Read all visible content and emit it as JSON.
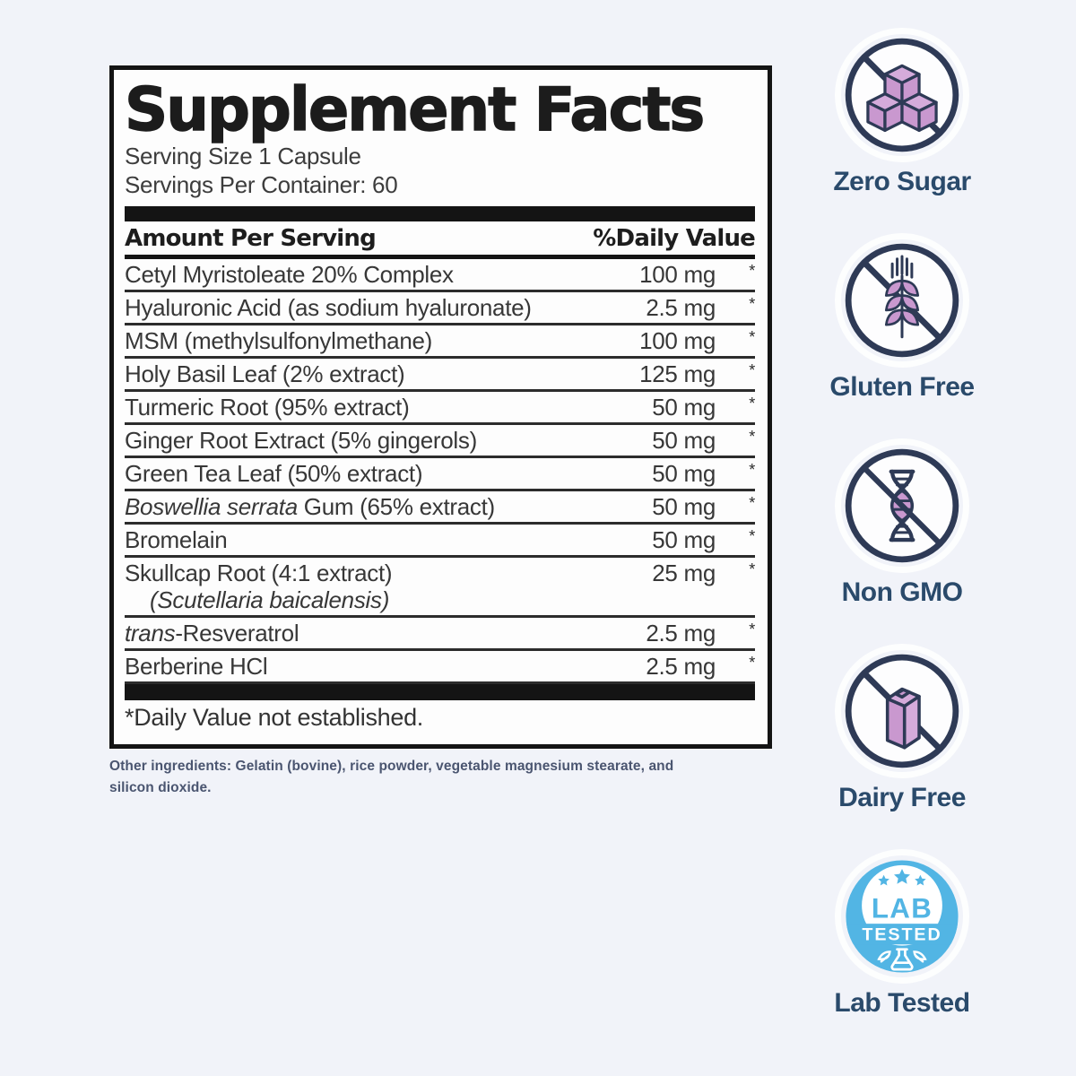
{
  "panel": {
    "title": "Supplement Facts",
    "serving_size": "Serving Size 1 Capsule",
    "servings_per_container": "Servings Per Container: 60",
    "columns": {
      "amount": "Amount Per Serving",
      "daily_value": "%Daily Value"
    },
    "rows": [
      {
        "parts": [
          {
            "text": "Cetyl Myristoleate 20% Complex",
            "italic": false
          }
        ],
        "amount": "100 mg",
        "dv": "*"
      },
      {
        "parts": [
          {
            "text": "Hyaluronic Acid (as sodium hyaluronate)",
            "italic": false
          }
        ],
        "amount": "2.5 mg",
        "dv": "*"
      },
      {
        "parts": [
          {
            "text": "MSM (methylsulfonylmethane)",
            "italic": false
          }
        ],
        "amount": "100 mg",
        "dv": "*"
      },
      {
        "parts": [
          {
            "text": "Holy Basil Leaf (2% extract)",
            "italic": false
          }
        ],
        "amount": "125 mg",
        "dv": "*"
      },
      {
        "parts": [
          {
            "text": "Turmeric Root (95% extract)",
            "italic": false
          }
        ],
        "amount": "50 mg",
        "dv": "*"
      },
      {
        "parts": [
          {
            "text": "Ginger Root Extract (5% gingerols)",
            "italic": false
          }
        ],
        "amount": "50 mg",
        "dv": "*"
      },
      {
        "parts": [
          {
            "text": "Green Tea Leaf (50% extract)",
            "italic": false
          }
        ],
        "amount": "50 mg",
        "dv": "*"
      },
      {
        "parts": [
          {
            "text": "Boswellia serrata",
            "italic": true
          },
          {
            "text": " Gum (65% extract)",
            "italic": false
          }
        ],
        "amount": "50 mg",
        "dv": "*"
      },
      {
        "parts": [
          {
            "text": "Bromelain",
            "italic": false
          }
        ],
        "amount": "50 mg",
        "dv": "*"
      },
      {
        "parts": [
          {
            "text": "Skullcap Root (4:1 extract)",
            "italic": false
          }
        ],
        "sub": [
          {
            "text": "(Scutellaria baicalensis)",
            "italic": true
          }
        ],
        "amount": "25 mg",
        "dv": "*"
      },
      {
        "parts": [
          {
            "text": "trans",
            "italic": true
          },
          {
            "text": "-Resveratrol",
            "italic": false
          }
        ],
        "amount": "2.5 mg",
        "dv": "*"
      },
      {
        "parts": [
          {
            "text": "Berberine HCl",
            "italic": false
          }
        ],
        "amount": "2.5 mg",
        "dv": "*"
      }
    ],
    "footnote": "*Daily Value not established."
  },
  "other_ingredients": "Other ingredients: Gelatin (bovine), rice powder, vegetable magnesium stearate, and silicon dioxide.",
  "badges": [
    {
      "label": "Zero Sugar",
      "icon": "no-sugar-icon"
    },
    {
      "label": "Gluten Free",
      "icon": "no-gluten-icon"
    },
    {
      "label": "Non GMO",
      "icon": "no-gmo-icon"
    },
    {
      "label": "Dairy Free",
      "icon": "no-dairy-icon"
    },
    {
      "label": "Lab Tested",
      "icon": "lab-tested-seal"
    }
  ],
  "lab_seal": {
    "line1": "LAB",
    "line2": "TESTED"
  },
  "colors": {
    "outline_navy": "#2e3a56",
    "accent_purple": "#c998cf",
    "accent_purple_light": "#d5abdb",
    "label_navy": "#2a4a6b",
    "seal_blue": "#52b5e4",
    "page_bg": "#f1f3f9"
  }
}
